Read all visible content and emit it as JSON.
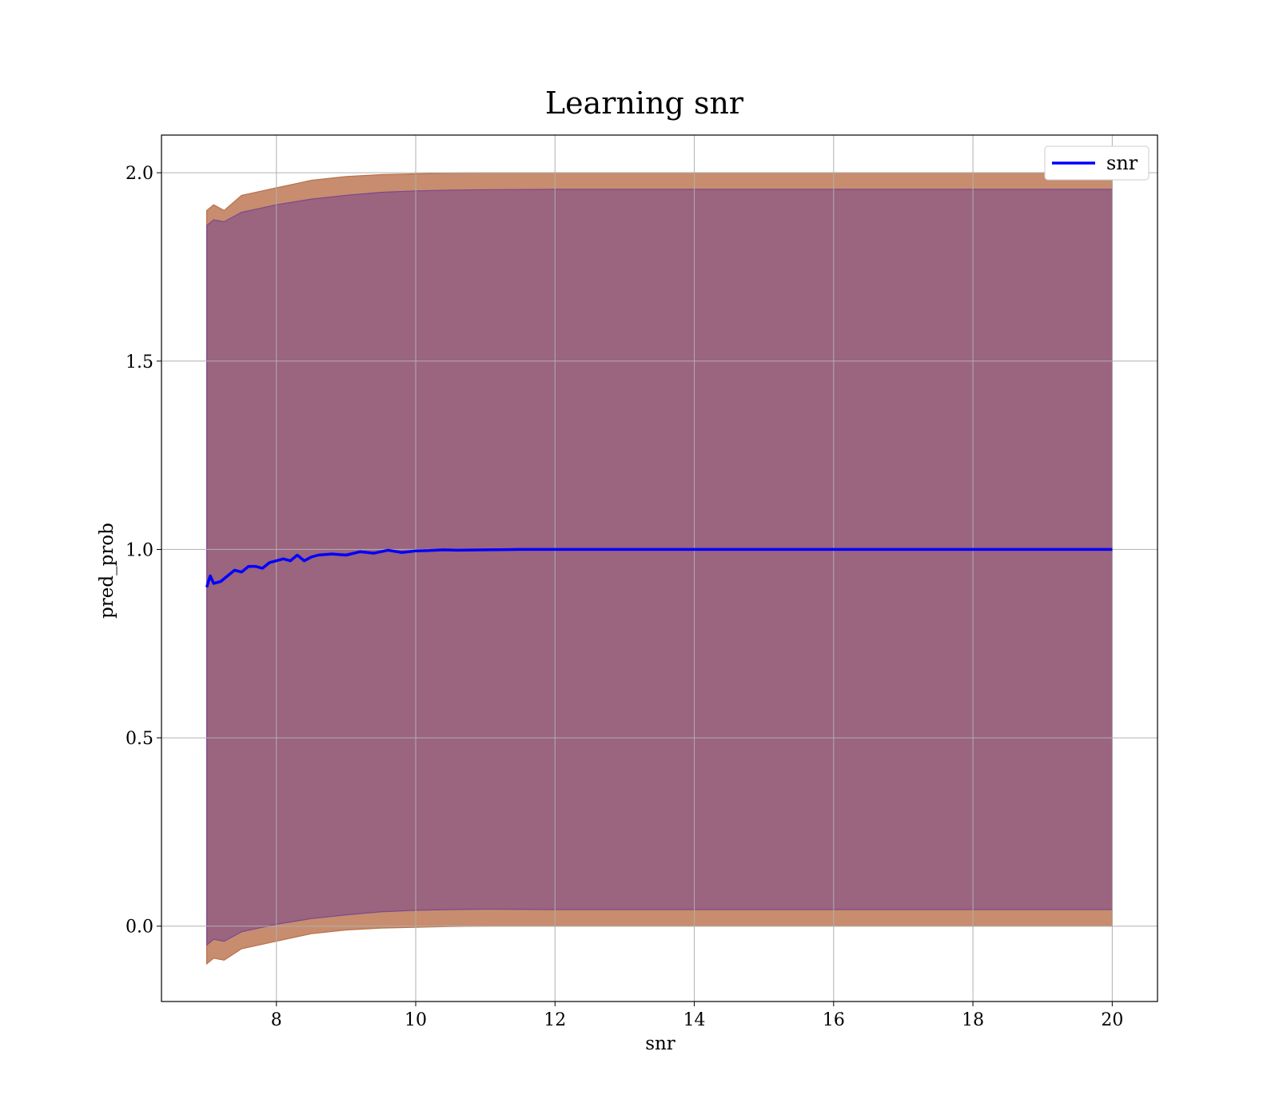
{
  "chart_data": {
    "type": "line",
    "title": "Learning snr",
    "xlabel": "snr",
    "ylabel": "pred_prob",
    "xlim": [
      6.35,
      20.65
    ],
    "ylim": [
      -0.2,
      2.1
    ],
    "xticks": [
      8,
      10,
      12,
      14,
      16,
      18,
      20
    ],
    "xtick_labels": [
      "8",
      "10",
      "12",
      "14",
      "16",
      "18",
      "20"
    ],
    "yticks": [
      0.0,
      0.5,
      1.0,
      1.5,
      2.0
    ],
    "ytick_labels": [
      "0.0",
      "0.5",
      "1.0",
      "1.5",
      "2.0"
    ],
    "grid": true,
    "legend": {
      "position": "top-right",
      "entries": [
        "snr"
      ]
    },
    "series": [
      {
        "name": "snr",
        "color": "#0000ff",
        "x": [
          7.0,
          7.05,
          7.1,
          7.2,
          7.3,
          7.4,
          7.5,
          7.6,
          7.7,
          7.8,
          7.9,
          8.0,
          8.1,
          8.2,
          8.3,
          8.4,
          8.5,
          8.6,
          8.8,
          9.0,
          9.2,
          9.4,
          9.6,
          9.8,
          10.0,
          10.2,
          10.4,
          10.6,
          11.0,
          11.5,
          12.0,
          13.0,
          14.0,
          16.0,
          18.0,
          20.0
        ],
        "y": [
          0.9,
          0.93,
          0.91,
          0.915,
          0.93,
          0.945,
          0.94,
          0.955,
          0.955,
          0.95,
          0.965,
          0.97,
          0.975,
          0.97,
          0.985,
          0.97,
          0.98,
          0.985,
          0.988,
          0.985,
          0.994,
          0.99,
          0.998,
          0.992,
          0.996,
          0.997,
          0.999,
          0.998,
          0.999,
          1.0,
          1.0,
          1.0,
          1.0,
          1.0,
          1.0,
          1.0
        ]
      }
    ],
    "bands": [
      {
        "color": "#b9714a",
        "opacity": 0.8,
        "x": [
          7.0,
          7.1,
          7.25,
          7.5,
          7.75,
          8.0,
          8.5,
          9.0,
          9.5,
          10.0,
          10.5,
          11.0,
          12.0,
          13.0,
          14.0,
          16.0,
          18.0,
          20.0
        ],
        "upper": [
          1.9,
          1.915,
          1.9,
          1.94,
          1.95,
          1.96,
          1.98,
          1.99,
          1.995,
          1.997,
          1.999,
          2.0,
          2.0,
          2.0,
          2.0,
          2.0,
          2.0,
          2.0
        ],
        "lower": [
          -0.1,
          -0.085,
          -0.09,
          -0.06,
          -0.05,
          -0.04,
          -0.02,
          -0.01,
          -0.005,
          -0.003,
          -0.001,
          0.0,
          0.0,
          0.0,
          0.0,
          0.0,
          0.0,
          0.0
        ]
      },
      {
        "color": "#7d4a8b",
        "opacity": 0.6,
        "x": [
          7.0,
          7.1,
          7.25,
          7.5,
          7.75,
          8.0,
          8.5,
          9.0,
          9.5,
          10.0,
          10.5,
          11.0,
          12.0,
          13.0,
          14.0,
          16.0,
          18.0,
          20.0
        ],
        "upper": [
          1.86,
          1.875,
          1.87,
          1.895,
          1.905,
          1.915,
          1.93,
          1.94,
          1.948,
          1.952,
          1.954,
          1.955,
          1.956,
          1.956,
          1.956,
          1.956,
          1.956,
          1.956
        ],
        "lower": [
          -0.05,
          -0.035,
          -0.04,
          -0.015,
          -0.005,
          0.005,
          0.02,
          0.03,
          0.038,
          0.042,
          0.044,
          0.045,
          0.044,
          0.044,
          0.044,
          0.044,
          0.044,
          0.044
        ]
      }
    ]
  }
}
